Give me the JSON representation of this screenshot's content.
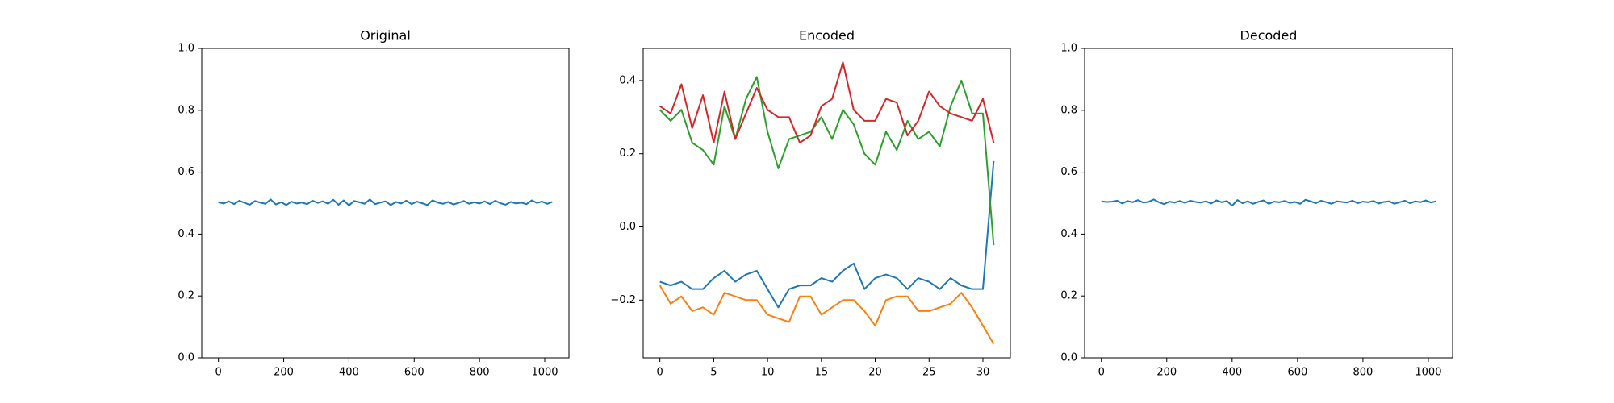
{
  "chart_data": [
    {
      "type": "line",
      "title": "Original",
      "x": [
        0,
        16,
        32,
        48,
        64,
        80,
        96,
        112,
        128,
        144,
        160,
        176,
        192,
        208,
        224,
        240,
        256,
        272,
        288,
        304,
        320,
        336,
        352,
        368,
        384,
        400,
        416,
        432,
        448,
        464,
        480,
        496,
        512,
        528,
        544,
        560,
        576,
        592,
        608,
        624,
        640,
        656,
        672,
        688,
        704,
        720,
        736,
        752,
        768,
        784,
        800,
        816,
        832,
        848,
        864,
        880,
        896,
        912,
        928,
        944,
        960,
        976,
        992,
        1008,
        1023
      ],
      "series": [
        {
          "color": "#1f77b4",
          "values": [
            0.503,
            0.499,
            0.506,
            0.497,
            0.508,
            0.501,
            0.495,
            0.507,
            0.502,
            0.498,
            0.512,
            0.496,
            0.503,
            0.494,
            0.505,
            0.499,
            0.502,
            0.497,
            0.508,
            0.501,
            0.506,
            0.498,
            0.511,
            0.495,
            0.509,
            0.493,
            0.507,
            0.503,
            0.498,
            0.512,
            0.497,
            0.502,
            0.506,
            0.494,
            0.504,
            0.499,
            0.508,
            0.497,
            0.505,
            0.5,
            0.494,
            0.509,
            0.502,
            0.498,
            0.504,
            0.496,
            0.501,
            0.507,
            0.498,
            0.503,
            0.499,
            0.506,
            0.497,
            0.508,
            0.5,
            0.495,
            0.504,
            0.499,
            0.502,
            0.497,
            0.509,
            0.501,
            0.505,
            0.498,
            0.504
          ]
        }
      ],
      "xlim": [
        -51.15,
        1074.15
      ],
      "xticks": [
        0,
        200,
        400,
        600,
        800,
        1000
      ],
      "ylim": [
        0,
        1
      ],
      "yticks": [
        {
          "value": 0,
          "label": "0.0"
        },
        0.2,
        0.4,
        0.6,
        0.8,
        {
          "value": 1,
          "label": "1.0"
        }
      ]
    },
    {
      "type": "line",
      "title": "Encoded",
      "x": [
        0,
        1,
        2,
        3,
        4,
        5,
        6,
        7,
        8,
        9,
        10,
        11,
        12,
        13,
        14,
        15,
        16,
        17,
        18,
        19,
        20,
        21,
        22,
        23,
        24,
        25,
        26,
        27,
        28,
        29,
        30,
        31
      ],
      "series": [
        {
          "color": "#1f77b4",
          "values": [
            -0.15,
            -0.16,
            -0.15,
            -0.17,
            -0.17,
            -0.14,
            -0.12,
            -0.15,
            -0.13,
            -0.12,
            -0.17,
            -0.22,
            -0.17,
            -0.16,
            -0.16,
            -0.14,
            -0.15,
            -0.12,
            -0.1,
            -0.17,
            -0.14,
            -0.13,
            -0.14,
            -0.17,
            -0.14,
            -0.15,
            -0.17,
            -0.14,
            -0.16,
            -0.17,
            -0.17,
            0.18
          ]
        },
        {
          "color": "#ff7f0e",
          "values": [
            -0.16,
            -0.21,
            -0.19,
            -0.23,
            -0.22,
            -0.24,
            -0.18,
            -0.19,
            -0.2,
            -0.2,
            -0.24,
            -0.25,
            -0.26,
            -0.19,
            -0.19,
            -0.24,
            -0.22,
            -0.2,
            -0.2,
            -0.23,
            -0.27,
            -0.2,
            -0.19,
            -0.19,
            -0.23,
            -0.23,
            -0.22,
            -0.21,
            -0.18,
            -0.22,
            -0.27,
            -0.32
          ]
        },
        {
          "color": "#2ca02c",
          "values": [
            0.32,
            0.29,
            0.32,
            0.23,
            0.21,
            0.17,
            0.33,
            0.24,
            0.35,
            0.41,
            0.26,
            0.16,
            0.24,
            0.25,
            0.26,
            0.3,
            0.24,
            0.32,
            0.28,
            0.2,
            0.17,
            0.26,
            0.21,
            0.29,
            0.24,
            0.26,
            0.22,
            0.33,
            0.4,
            0.31,
            0.31,
            -0.05
          ]
        },
        {
          "color": "#d62728",
          "values": [
            0.33,
            0.31,
            0.39,
            0.27,
            0.36,
            0.23,
            0.37,
            0.24,
            0.31,
            0.38,
            0.32,
            0.3,
            0.3,
            0.23,
            0.25,
            0.33,
            0.35,
            0.45,
            0.32,
            0.29,
            0.29,
            0.35,
            0.34,
            0.25,
            0.29,
            0.37,
            0.33,
            0.31,
            0.3,
            0.29,
            0.35,
            0.23
          ]
        }
      ],
      "xlim": [
        -1.55,
        32.55
      ],
      "xticks": [
        0,
        5,
        10,
        15,
        20,
        25,
        30
      ],
      "ylim": [
        -0.358,
        0.488
      ],
      "yticks": [
        {
          "value": -0.2,
          "label": "−0.2"
        },
        {
          "value": 0,
          "label": "0.0"
        },
        0.2,
        0.4
      ]
    },
    {
      "type": "line",
      "title": "Decoded",
      "x": [
        0,
        16,
        32,
        48,
        64,
        80,
        96,
        112,
        128,
        144,
        160,
        176,
        192,
        208,
        224,
        240,
        256,
        272,
        288,
        304,
        320,
        336,
        352,
        368,
        384,
        400,
        416,
        432,
        448,
        464,
        480,
        496,
        512,
        528,
        544,
        560,
        576,
        592,
        608,
        624,
        640,
        656,
        672,
        688,
        704,
        720,
        736,
        752,
        768,
        784,
        800,
        816,
        832,
        848,
        864,
        880,
        896,
        912,
        928,
        944,
        960,
        976,
        992,
        1008,
        1023
      ],
      "series": [
        {
          "color": "#1f77b4",
          "values": [
            0.506,
            0.504,
            0.505,
            0.508,
            0.499,
            0.507,
            0.503,
            0.51,
            0.502,
            0.504,
            0.512,
            0.503,
            0.497,
            0.505,
            0.502,
            0.507,
            0.501,
            0.508,
            0.504,
            0.502,
            0.506,
            0.499,
            0.509,
            0.503,
            0.507,
            0.492,
            0.51,
            0.5,
            0.506,
            0.498,
            0.504,
            0.509,
            0.498,
            0.505,
            0.503,
            0.507,
            0.501,
            0.504,
            0.498,
            0.511,
            0.506,
            0.5,
            0.508,
            0.503,
            0.498,
            0.506,
            0.504,
            0.502,
            0.508,
            0.5,
            0.505,
            0.503,
            0.507,
            0.499,
            0.504,
            0.506,
            0.498,
            0.503,
            0.508,
            0.5,
            0.506,
            0.503,
            0.509,
            0.502,
            0.506
          ]
        }
      ],
      "xlim": [
        -51.15,
        1074.15
      ],
      "xticks": [
        0,
        200,
        400,
        600,
        800,
        1000
      ],
      "ylim": [
        0,
        1
      ],
      "yticks": [
        {
          "value": 0,
          "label": "0.0"
        },
        0.2,
        0.4,
        0.6,
        0.8,
        {
          "value": 1,
          "label": "1.0"
        }
      ]
    }
  ]
}
